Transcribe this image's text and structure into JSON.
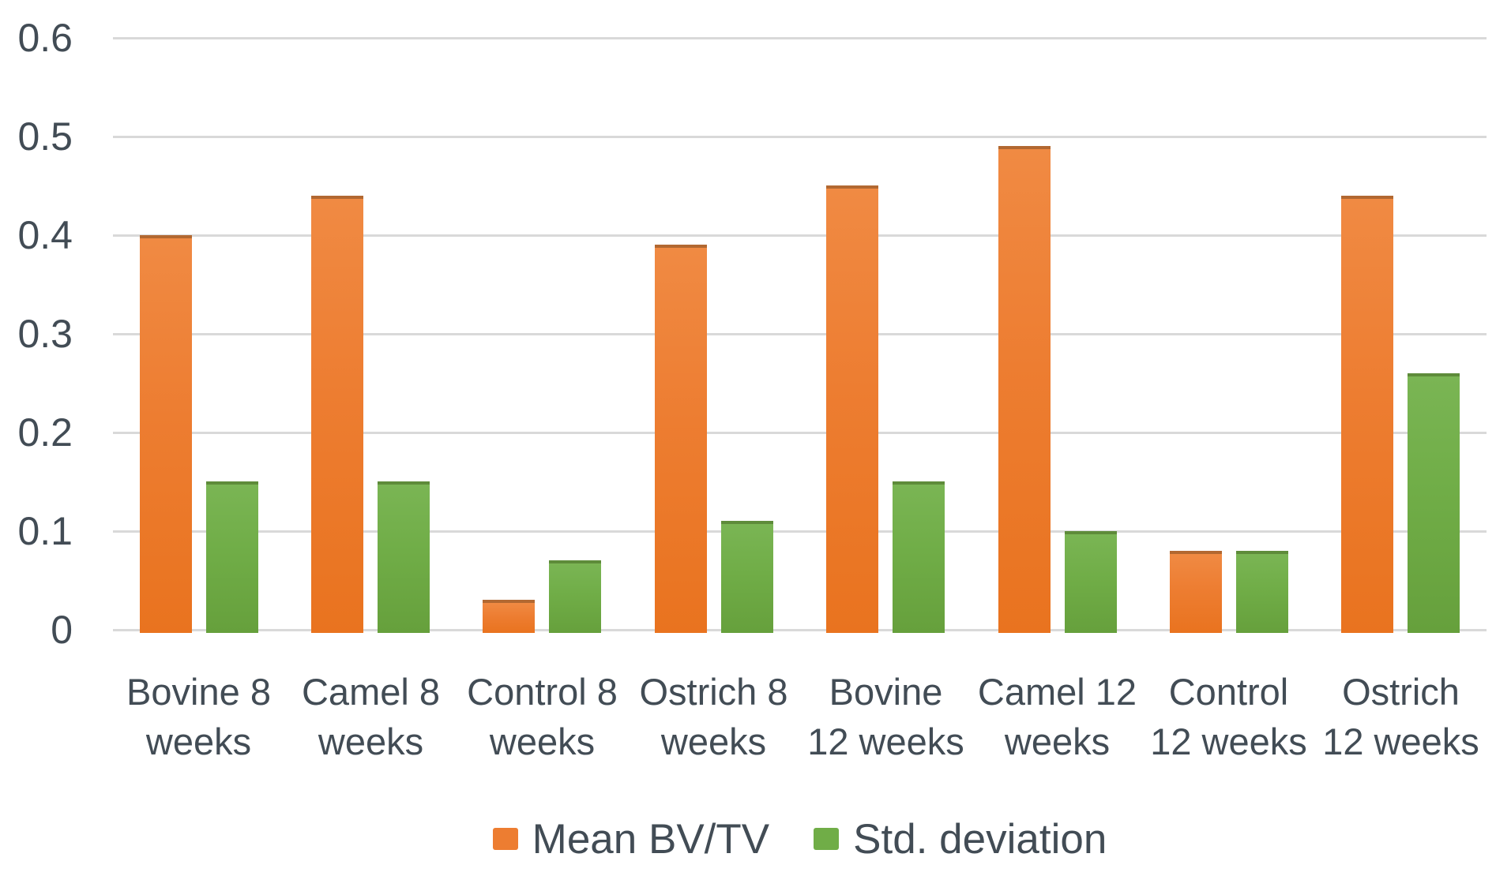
{
  "chart_data": {
    "type": "bar",
    "title": "",
    "xlabel": "",
    "ylabel": "",
    "categories": [
      "Bovine 8 weeks",
      "Camel 8 weeks",
      "Control 8 weeks",
      "Ostrich 8 weeks",
      "Bovine 12 weeks",
      "Camel 12 weeks",
      "Control 12 weeks",
      "Ostrich 12 weeks"
    ],
    "category_lines": [
      [
        "Bovine 8",
        "weeks"
      ],
      [
        "Camel 8",
        "weeks"
      ],
      [
        "Control 8",
        "weeks"
      ],
      [
        "Ostrich 8",
        "weeks"
      ],
      [
        "Bovine",
        "12 weeks"
      ],
      [
        "Camel 12",
        "weeks"
      ],
      [
        "Control",
        "12 weeks"
      ],
      [
        "Ostrich",
        "12 weeks"
      ]
    ],
    "series": [
      {
        "name": "Mean BV/TV",
        "color": "#ED7D31",
        "values": [
          0.4,
          0.44,
          0.03,
          0.39,
          0.45,
          0.49,
          0.08,
          0.44
        ]
      },
      {
        "name": "Std. deviation",
        "color": "#70AD47",
        "values": [
          0.15,
          0.15,
          0.07,
          0.11,
          0.15,
          0.1,
          0.08,
          0.26
        ]
      }
    ],
    "ylim": [
      0,
      0.6
    ],
    "yticks": [
      "0",
      "0.1",
      "0.2",
      "0.3",
      "0.4",
      "0.5",
      "0.6"
    ],
    "grid": "horizontal",
    "legend_position": "bottom",
    "axis_text_color": "#424C55",
    "gridline_color": "#D9D9D9"
  }
}
